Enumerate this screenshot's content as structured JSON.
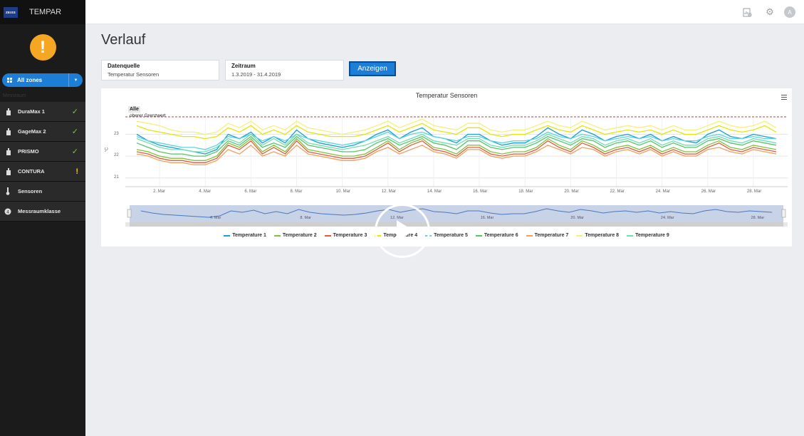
{
  "app": {
    "logo_text": "ZEISS",
    "name": "TEMPAR"
  },
  "sidebar": {
    "alert_symbol": "!",
    "zone_button": "All zones",
    "section_label": "Messraum",
    "items": [
      {
        "label": "DuraMax 1",
        "icon": "device-icon",
        "status": "ok"
      },
      {
        "label": "GageMax 2",
        "icon": "device-icon",
        "status": "ok"
      },
      {
        "label": "PRISMO",
        "icon": "device-icon",
        "status": "ok"
      },
      {
        "label": "CONTURA",
        "icon": "device-icon",
        "status": "warn"
      },
      {
        "label": "Sensoren",
        "icon": "thermometer-icon",
        "status": ""
      },
      {
        "label": "Messraumklasse",
        "icon": "class-icon",
        "status": ""
      }
    ]
  },
  "header": {
    "avatar_initial": "A"
  },
  "main": {
    "title": "Verlauf",
    "source": {
      "label": "Datenquelle",
      "value": "Temperatur Sensoren"
    },
    "period": {
      "label": "Zeitraum",
      "value": "1.3.2019 - 31.4.2019"
    },
    "show_button": "Anzeigen"
  },
  "colors": {
    "accent": "#1c7ed6",
    "alert": "#f5a623",
    "ok": "#7dc242",
    "warn": "#f5c400"
  },
  "chart_data": {
    "type": "line",
    "title": "Temperatur Sensoren",
    "ylabel": "°C",
    "ylim": [
      20.6,
      23.8
    ],
    "y_ticks": [
      "23",
      "22",
      "21"
    ],
    "x_ticks": [
      "2. Mar",
      "4. Mar",
      "6. Mar",
      "8. Mar",
      "10. Mar",
      "12. Mar",
      "14. Mar",
      "16. Mar",
      "18. Mar",
      "20. Mar",
      "22. Mar",
      "24. Mar",
      "26. Mar",
      "28. Mar"
    ],
    "navigator_ticks": [
      "4. Mar",
      "8. Mar",
      "12. Mar",
      "16. Mar",
      "20. Mar",
      "24. Mar",
      "28. Mar"
    ],
    "annotations": {
      "group": "Alle",
      "upper_limit": "oberer Grenzwert",
      "upper_limit_value": 23.8
    },
    "x_days": [
      1,
      1.5,
      2,
      2.5,
      3,
      3.5,
      4,
      4.5,
      5,
      5.5,
      6,
      6.5,
      7,
      7.5,
      8,
      8.5,
      9,
      9.5,
      10,
      10.5,
      11,
      11.5,
      12,
      12.5,
      13,
      13.5,
      14,
      14.5,
      15,
      15.5,
      16,
      16.5,
      17,
      17.5,
      18,
      18.5,
      19,
      19.5,
      20,
      20.5,
      21,
      21.5,
      22,
      22.5,
      23,
      23.5,
      24,
      24.5,
      25,
      25.5,
      26,
      26.5,
      27,
      27.5,
      28,
      28.5,
      29
    ],
    "series": [
      {
        "name": "Temperature 1",
        "color": "#1a9fd0",
        "values": [
          23.0,
          22.7,
          22.5,
          22.4,
          22.3,
          22.2,
          22.1,
          22.3,
          23.0,
          22.8,
          23.1,
          22.6,
          22.9,
          22.6,
          23.2,
          22.8,
          22.6,
          22.5,
          22.4,
          22.5,
          22.7,
          23.0,
          23.2,
          22.8,
          23.1,
          23.3,
          22.9,
          22.8,
          22.6,
          23.0,
          23.0,
          22.7,
          22.5,
          22.6,
          22.6,
          22.9,
          23.3,
          23.0,
          22.8,
          23.2,
          23.0,
          22.7,
          22.9,
          23.0,
          22.8,
          23.0,
          22.7,
          22.9,
          22.7,
          22.6,
          23.0,
          23.2,
          22.9,
          22.8,
          23.0,
          22.9,
          22.8
        ]
      },
      {
        "name": "Temperature 2",
        "color": "#7dc242",
        "values": [
          22.3,
          22.2,
          22.0,
          21.9,
          21.9,
          21.8,
          21.8,
          22.0,
          22.6,
          22.4,
          22.8,
          22.2,
          22.5,
          22.2,
          22.8,
          22.3,
          22.2,
          22.1,
          22.0,
          22.0,
          22.1,
          22.4,
          22.7,
          22.3,
          22.6,
          22.8,
          22.4,
          22.3,
          22.1,
          22.5,
          22.5,
          22.2,
          22.1,
          22.2,
          22.2,
          22.4,
          22.8,
          22.5,
          22.3,
          22.7,
          22.5,
          22.2,
          22.4,
          22.5,
          22.3,
          22.5,
          22.2,
          22.4,
          22.2,
          22.2,
          22.5,
          22.7,
          22.4,
          22.3,
          22.5,
          22.4,
          22.3
        ]
      },
      {
        "name": "Temperature 3",
        "color": "#e35b3a",
        "values": [
          22.2,
          22.1,
          21.9,
          21.8,
          21.8,
          21.7,
          21.7,
          21.9,
          22.5,
          22.3,
          22.7,
          22.1,
          22.4,
          22.1,
          22.7,
          22.2,
          22.1,
          22.0,
          21.9,
          21.9,
          22.0,
          22.3,
          22.6,
          22.2,
          22.5,
          22.7,
          22.3,
          22.2,
          22.0,
          22.4,
          22.4,
          22.1,
          22.0,
          22.1,
          22.1,
          22.3,
          22.7,
          22.4,
          22.2,
          22.6,
          22.4,
          22.1,
          22.3,
          22.4,
          22.2,
          22.4,
          22.1,
          22.3,
          22.1,
          22.1,
          22.4,
          22.6,
          22.3,
          22.2,
          22.4,
          22.3,
          22.2
        ]
      },
      {
        "name": "Temperature 4",
        "color": "#e6e600",
        "values": [
          23.4,
          23.2,
          23.1,
          23.0,
          22.9,
          22.9,
          22.8,
          22.9,
          23.3,
          23.1,
          23.4,
          23.0,
          23.2,
          23.0,
          23.4,
          23.1,
          23.0,
          22.9,
          22.9,
          22.9,
          23.0,
          23.2,
          23.4,
          23.1,
          23.3,
          23.5,
          23.2,
          23.1,
          23.0,
          23.3,
          23.3,
          23.0,
          22.9,
          23.0,
          23.0,
          23.2,
          23.4,
          23.2,
          23.1,
          23.4,
          23.2,
          23.0,
          23.1,
          23.2,
          23.1,
          23.2,
          23.0,
          23.2,
          23.0,
          23.0,
          23.2,
          23.4,
          23.2,
          23.1,
          23.2,
          23.4,
          23.1
        ]
      },
      {
        "name": "Temperature 5",
        "color": "#5fd3e0",
        "values": [
          22.9,
          22.7,
          22.6,
          22.5,
          22.4,
          22.4,
          22.3,
          22.5,
          22.9,
          22.8,
          23.0,
          22.7,
          22.9,
          22.7,
          23.0,
          22.8,
          22.7,
          22.6,
          22.5,
          22.6,
          22.7,
          22.9,
          23.1,
          22.8,
          23.0,
          23.1,
          22.9,
          22.8,
          22.7,
          22.9,
          22.9,
          22.7,
          22.6,
          22.7,
          22.7,
          22.8,
          23.1,
          22.9,
          22.8,
          23.0,
          22.9,
          22.7,
          22.8,
          22.9,
          22.8,
          22.9,
          22.7,
          22.8,
          22.7,
          22.7,
          22.9,
          23.0,
          22.8,
          22.8,
          22.9,
          22.8,
          22.8
        ]
      },
      {
        "name": "Temperature 6",
        "color": "#56c46a",
        "values": [
          22.6,
          22.4,
          22.2,
          22.1,
          22.1,
          22.0,
          22.0,
          22.2,
          22.7,
          22.5,
          22.9,
          22.4,
          22.6,
          22.4,
          22.9,
          22.5,
          22.4,
          22.3,
          22.2,
          22.2,
          22.3,
          22.6,
          22.8,
          22.5,
          22.7,
          22.9,
          22.6,
          22.5,
          22.3,
          22.7,
          22.7,
          22.4,
          22.3,
          22.4,
          22.4,
          22.6,
          22.9,
          22.7,
          22.5,
          22.8,
          22.7,
          22.4,
          22.6,
          22.7,
          22.5,
          22.7,
          22.4,
          22.6,
          22.4,
          22.4,
          22.7,
          22.8,
          22.6,
          22.5,
          22.7,
          22.6,
          22.5
        ]
      },
      {
        "name": "Temperature 7",
        "color": "#f0a060",
        "values": [
          22.1,
          22.0,
          21.8,
          21.7,
          21.7,
          21.6,
          21.6,
          21.8,
          22.3,
          22.1,
          22.5,
          22.0,
          22.2,
          22.0,
          22.5,
          22.1,
          22.0,
          21.9,
          21.8,
          21.8,
          21.9,
          22.2,
          22.4,
          22.1,
          22.3,
          22.5,
          22.2,
          22.1,
          21.9,
          22.3,
          22.3,
          22.0,
          21.9,
          22.0,
          22.0,
          22.2,
          22.5,
          22.3,
          22.1,
          22.4,
          22.3,
          22.0,
          22.2,
          22.3,
          22.1,
          22.3,
          22.0,
          22.2,
          22.0,
          22.0,
          22.3,
          22.4,
          22.2,
          22.1,
          22.3,
          22.2,
          22.1
        ]
      },
      {
        "name": "Temperature 8",
        "color": "#f5f07a",
        "values": [
          23.6,
          23.5,
          23.4,
          23.2,
          23.1,
          23.1,
          23.0,
          23.1,
          23.5,
          23.3,
          23.6,
          23.2,
          23.4,
          23.2,
          23.6,
          23.3,
          23.2,
          23.1,
          23.0,
          23.1,
          23.2,
          23.4,
          23.6,
          23.3,
          23.5,
          23.7,
          23.4,
          23.3,
          23.2,
          23.5,
          23.5,
          23.2,
          23.1,
          23.2,
          23.2,
          23.4,
          23.6,
          23.4,
          23.3,
          23.6,
          23.4,
          23.2,
          23.3,
          23.4,
          23.3,
          23.4,
          23.2,
          23.4,
          23.2,
          23.2,
          23.4,
          23.6,
          23.4,
          23.3,
          23.4,
          23.6,
          23.3
        ]
      },
      {
        "name": "Temperature 9",
        "color": "#6ee0b0",
        "values": [
          22.8,
          22.6,
          22.4,
          22.3,
          22.3,
          22.2,
          22.2,
          22.4,
          22.8,
          22.6,
          23.0,
          22.5,
          22.8,
          22.5,
          23.0,
          22.6,
          22.5,
          22.4,
          22.3,
          22.4,
          22.5,
          22.7,
          22.9,
          22.6,
          22.8,
          23.0,
          22.7,
          22.6,
          22.5,
          22.8,
          22.8,
          22.5,
          22.4,
          22.5,
          22.5,
          22.7,
          23.0,
          22.8,
          22.6,
          22.9,
          22.8,
          22.5,
          22.7,
          22.8,
          22.6,
          22.8,
          22.5,
          22.7,
          22.5,
          22.5,
          22.8,
          22.9,
          22.7,
          22.6,
          22.8,
          22.7,
          22.6
        ]
      }
    ]
  }
}
